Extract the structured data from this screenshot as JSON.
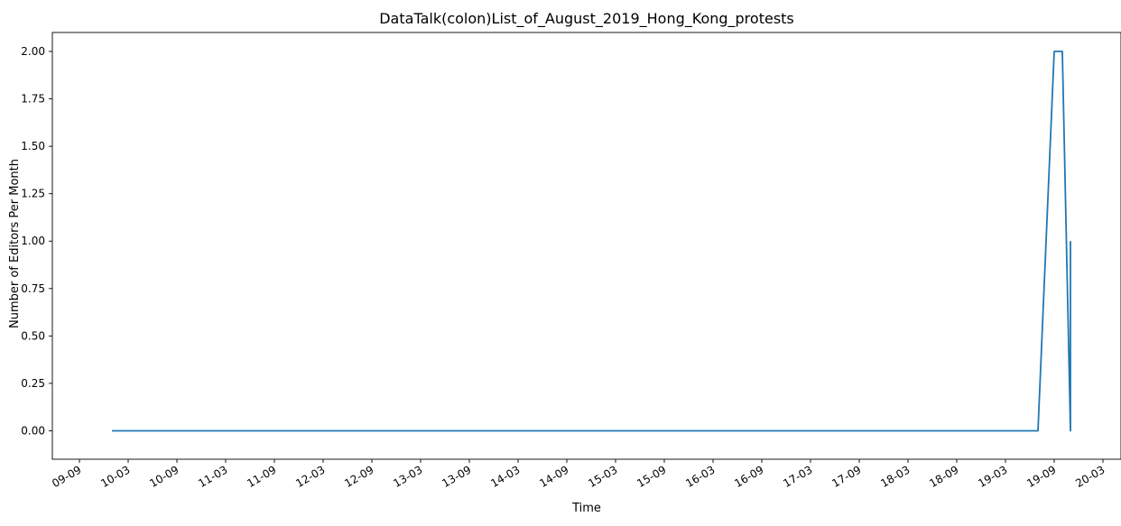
{
  "chart_data": {
    "type": "line",
    "title": "DataTalk(colon)List_of_August_2019_Hong_Kong_protests",
    "xlabel": "Time",
    "ylabel": "Number of Editors Per Month",
    "x_ticks": [
      "09-09",
      "10-03",
      "10-09",
      "11-03",
      "11-09",
      "12-03",
      "12-09",
      "13-03",
      "13-09",
      "14-03",
      "14-09",
      "15-03",
      "15-09",
      "16-03",
      "16-09",
      "17-03",
      "17-09",
      "18-03",
      "18-09",
      "19-03",
      "19-09",
      "20-03"
    ],
    "y_ticks": [
      "0.00",
      "0.25",
      "0.50",
      "0.75",
      "1.00",
      "1.25",
      "1.50",
      "1.75",
      "2.00"
    ],
    "ylim": [
      -0.15,
      2.1
    ],
    "grid": false,
    "color": "#1f77b4",
    "series": [
      {
        "points": [
          [
            "10-01",
            0
          ],
          [
            "19-07",
            0
          ],
          [
            "19-09",
            2
          ],
          [
            "19-10",
            2
          ],
          [
            "19-11",
            0
          ],
          [
            "19-11",
            1
          ]
        ]
      }
    ]
  }
}
